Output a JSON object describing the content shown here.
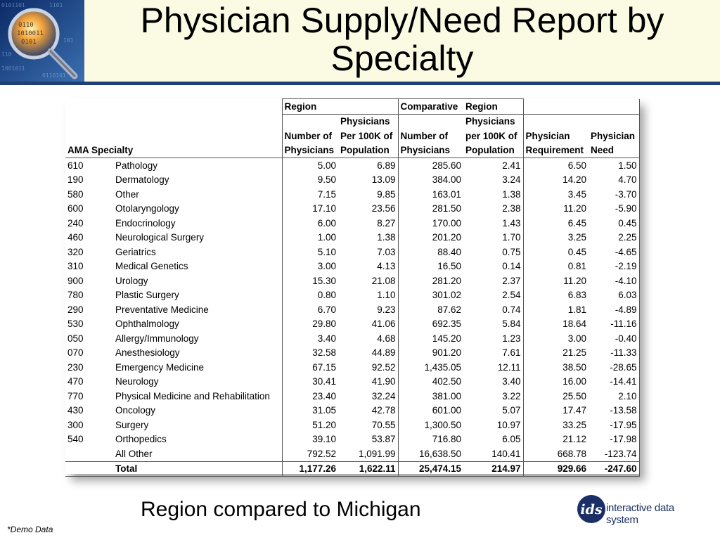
{
  "title": "Physician Supply/Need Report by Specialty",
  "table": {
    "group_headers": {
      "region": "Region",
      "comparative": "Comparative",
      "comparative_region": "Region"
    },
    "col_headers": {
      "ama_specialty": "AMA Specialty",
      "num_physicians_a": "Number of",
      "num_physicians_b": "Physicians",
      "per100k_a": "Physicians",
      "per100k_b": "Per 100K of",
      "per100k_c": "Population",
      "cmp_num_a": "Number of",
      "cmp_num_b": "Physicians",
      "cmp_per100k_a": "Physicians",
      "cmp_per100k_b": "per 100K of",
      "cmp_per100k_c": "Population",
      "requirement_a": "Physician",
      "requirement_b": "Requirement",
      "need_a": "Physician",
      "need_b": "Need"
    },
    "rows": [
      {
        "code": "610",
        "specialty": "Pathology",
        "num": "5.00",
        "per100k": "6.89",
        "cmp_num": "285.60",
        "cmp_per100k": "2.41",
        "req": "6.50",
        "need": "1.50"
      },
      {
        "code": "190",
        "specialty": "Dermatology",
        "num": "9.50",
        "per100k": "13.09",
        "cmp_num": "384.00",
        "cmp_per100k": "3.24",
        "req": "14.20",
        "need": "4.70"
      },
      {
        "code": "580",
        "specialty": "Other",
        "num": "7.15",
        "per100k": "9.85",
        "cmp_num": "163.01",
        "cmp_per100k": "1.38",
        "req": "3.45",
        "need": "-3.70"
      },
      {
        "code": "600",
        "specialty": "Otolaryngology",
        "num": "17.10",
        "per100k": "23.56",
        "cmp_num": "281.50",
        "cmp_per100k": "2.38",
        "req": "11.20",
        "need": "-5.90"
      },
      {
        "code": "240",
        "specialty": "Endocrinology",
        "num": "6.00",
        "per100k": "8.27",
        "cmp_num": "170.00",
        "cmp_per100k": "1.43",
        "req": "6.45",
        "need": "0.45"
      },
      {
        "code": "460",
        "specialty": "Neurological Surgery",
        "num": "1.00",
        "per100k": "1.38",
        "cmp_num": "201.20",
        "cmp_per100k": "1.70",
        "req": "3.25",
        "need": "2.25"
      },
      {
        "code": "320",
        "specialty": "Geriatrics",
        "num": "5.10",
        "per100k": "7.03",
        "cmp_num": "88.40",
        "cmp_per100k": "0.75",
        "req": "0.45",
        "need": "-4.65"
      },
      {
        "code": "310",
        "specialty": "Medical Genetics",
        "num": "3.00",
        "per100k": "4.13",
        "cmp_num": "16.50",
        "cmp_per100k": "0.14",
        "req": "0.81",
        "need": "-2.19"
      },
      {
        "code": "900",
        "specialty": "Urology",
        "num": "15.30",
        "per100k": "21.08",
        "cmp_num": "281.20",
        "cmp_per100k": "2.37",
        "req": "11.20",
        "need": "-4.10"
      },
      {
        "code": "780",
        "specialty": "Plastic Surgery",
        "num": "0.80",
        "per100k": "1.10",
        "cmp_num": "301.02",
        "cmp_per100k": "2.54",
        "req": "6.83",
        "need": "6.03"
      },
      {
        "code": "290",
        "specialty": "Preventative Medicine",
        "num": "6.70",
        "per100k": "9.23",
        "cmp_num": "87.62",
        "cmp_per100k": "0.74",
        "req": "1.81",
        "need": "-4.89"
      },
      {
        "code": "530",
        "specialty": "Ophthalmology",
        "num": "29.80",
        "per100k": "41.06",
        "cmp_num": "692.35",
        "cmp_per100k": "5.84",
        "req": "18.64",
        "need": "-11.16"
      },
      {
        "code": "050",
        "specialty": "Allergy/Immunology",
        "num": "3.40",
        "per100k": "4.68",
        "cmp_num": "145.20",
        "cmp_per100k": "1.23",
        "req": "3.00",
        "need": "-0.40"
      },
      {
        "code": "070",
        "specialty": "Anesthesiology",
        "num": "32.58",
        "per100k": "44.89",
        "cmp_num": "901.20",
        "cmp_per100k": "7.61",
        "req": "21.25",
        "need": "-11.33"
      },
      {
        "code": "230",
        "specialty": "Emergency Medicine",
        "num": "67.15",
        "per100k": "92.52",
        "cmp_num": "1,435.05",
        "cmp_per100k": "12.11",
        "req": "38.50",
        "need": "-28.65"
      },
      {
        "code": "470",
        "specialty": "Neurology",
        "num": "30.41",
        "per100k": "41.90",
        "cmp_num": "402.50",
        "cmp_per100k": "3.40",
        "req": "16.00",
        "need": "-14.41"
      },
      {
        "code": "770",
        "specialty": "Physical Medicine and Rehabilitation",
        "num": "23.40",
        "per100k": "32.24",
        "cmp_num": "381.00",
        "cmp_per100k": "3.22",
        "req": "25.50",
        "need": "2.10"
      },
      {
        "code": "430",
        "specialty": "Oncology",
        "num": "31.05",
        "per100k": "42.78",
        "cmp_num": "601.00",
        "cmp_per100k": "5.07",
        "req": "17.47",
        "need": "-13.58"
      },
      {
        "code": "300",
        "specialty": "Surgery",
        "num": "51.20",
        "per100k": "70.55",
        "cmp_num": "1,300.50",
        "cmp_per100k": "10.97",
        "req": "33.25",
        "need": "-17.95"
      },
      {
        "code": "540",
        "specialty": "Orthopedics",
        "num": "39.10",
        "per100k": "53.87",
        "cmp_num": "716.80",
        "cmp_per100k": "6.05",
        "req": "21.12",
        "need": "-17.98"
      },
      {
        "code": "",
        "specialty": "All Other",
        "num": "792.52",
        "per100k": "1,091.99",
        "cmp_num": "16,638.50",
        "cmp_per100k": "140.41",
        "req": "668.78",
        "need": "-123.74"
      }
    ],
    "total": {
      "code": "",
      "specialty": "Total",
      "num": "1,177.26",
      "per100k": "1,622.11",
      "cmp_num": "25,474.15",
      "cmp_per100k": "214.97",
      "req": "929.66",
      "need": "-247.60"
    }
  },
  "caption": "Region compared to Michigan",
  "footnote": "*Demo Data",
  "brand": {
    "mark": "ids",
    "name": "interactive data system"
  },
  "colors": {
    "header_band": "#fbfbe4",
    "header_rule": "#1f3f77",
    "brand_blue": "#1a2f66"
  }
}
